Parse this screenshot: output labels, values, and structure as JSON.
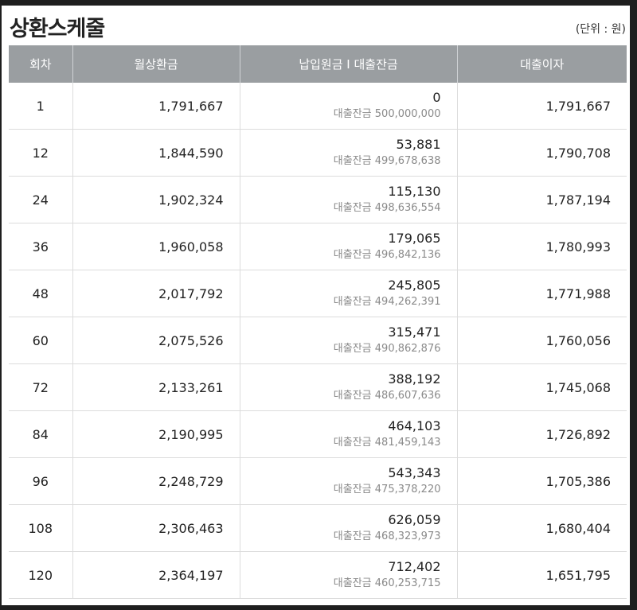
{
  "title": "상환스케줄",
  "unit": "(단위 : 원)",
  "columns": [
    "회차",
    "월상환금",
    "납입원금 I 대출잔금",
    "대출이자"
  ],
  "balance_prefix": "대출잔금",
  "rows": [
    {
      "no": "1",
      "payment": "1,791,667",
      "principal": "0",
      "balance": "500,000,000",
      "interest": "1,791,667"
    },
    {
      "no": "12",
      "payment": "1,844,590",
      "principal": "53,881",
      "balance": "499,678,638",
      "interest": "1,790,708"
    },
    {
      "no": "24",
      "payment": "1,902,324",
      "principal": "115,130",
      "balance": "498,636,554",
      "interest": "1,787,194"
    },
    {
      "no": "36",
      "payment": "1,960,058",
      "principal": "179,065",
      "balance": "496,842,136",
      "interest": "1,780,993"
    },
    {
      "no": "48",
      "payment": "2,017,792",
      "principal": "245,805",
      "balance": "494,262,391",
      "interest": "1,771,988"
    },
    {
      "no": "60",
      "payment": "2,075,526",
      "principal": "315,471",
      "balance": "490,862,876",
      "interest": "1,760,056"
    },
    {
      "no": "72",
      "payment": "2,133,261",
      "principal": "388,192",
      "balance": "486,607,636",
      "interest": "1,745,068"
    },
    {
      "no": "84",
      "payment": "2,190,995",
      "principal": "464,103",
      "balance": "481,459,143",
      "interest": "1,726,892"
    },
    {
      "no": "96",
      "payment": "2,248,729",
      "principal": "543,343",
      "balance": "475,378,220",
      "interest": "1,705,386"
    },
    {
      "no": "108",
      "payment": "2,306,463",
      "principal": "626,059",
      "balance": "468,323,973",
      "interest": "1,680,404"
    },
    {
      "no": "120",
      "payment": "2,364,197",
      "principal": "712,402",
      "balance": "460,253,715",
      "interest": "1,651,795"
    }
  ]
}
